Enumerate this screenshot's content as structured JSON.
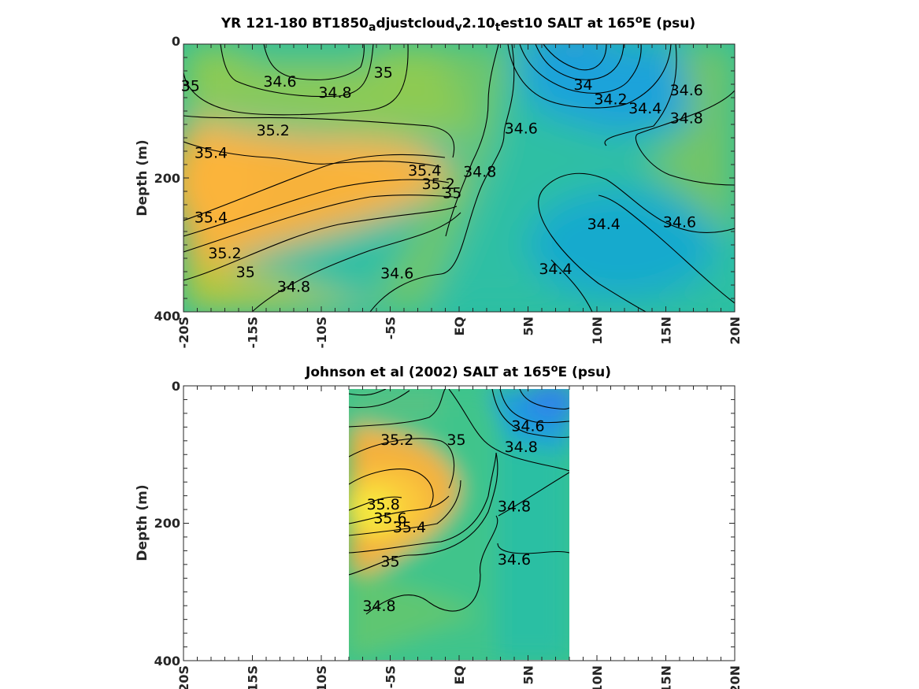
{
  "chart_data": [
    {
      "type": "contour",
      "title_main": "YR 121-180 BT1850",
      "title_parts": [
        {
          "t": "YR 121-180 BT1850"
        },
        {
          "t": "a",
          "sub": true
        },
        {
          "t": "djustcloud"
        },
        {
          "t": "v",
          "sub": true
        },
        {
          "t": "2.10"
        },
        {
          "t": "t",
          "sub": true
        },
        {
          "t": "est10 SALT at 165"
        },
        {
          "t": "o",
          "sup": true
        },
        {
          "t": "E (psu)"
        }
      ],
      "xlabel": "",
      "ylabel": "Depth (m)",
      "x_ticks": [
        "-20S",
        "-15S",
        "-10S",
        "-5S",
        "EQ",
        "5N",
        "10N",
        "15N",
        "20N"
      ],
      "y_ticks": [
        "0",
        "200",
        "400"
      ],
      "xlim": [
        -20,
        20
      ],
      "ylim": [
        400,
        0
      ],
      "data_extent_lat": [
        -20,
        20
      ],
      "grid": false,
      "colormap": "parula",
      "contour_labels": [
        {
          "text": "34.6",
          "lat": -13,
          "depth": 55
        },
        {
          "text": "34.8",
          "lat": -9,
          "depth": 72
        },
        {
          "text": "35",
          "lat": -19.5,
          "depth": 62
        },
        {
          "text": "35",
          "lat": -5.5,
          "depth": 42
        },
        {
          "text": "35.2",
          "lat": -13.5,
          "depth": 128
        },
        {
          "text": "35.4",
          "lat": -18,
          "depth": 162
        },
        {
          "text": "35.4",
          "lat": -18,
          "depth": 258
        },
        {
          "text": "35.2",
          "lat": -17,
          "depth": 312
        },
        {
          "text": "35",
          "lat": -15.5,
          "depth": 340
        },
        {
          "text": "34.8",
          "lat": -12,
          "depth": 362
        },
        {
          "text": "34.6",
          "lat": -4.5,
          "depth": 342
        },
        {
          "text": "35.4",
          "lat": -2.5,
          "depth": 188
        },
        {
          "text": "35.2",
          "lat": -1.5,
          "depth": 208
        },
        {
          "text": "35",
          "lat": -0.5,
          "depth": 222
        },
        {
          "text": "34.8",
          "lat": 1.5,
          "depth": 190
        },
        {
          "text": "34.6",
          "lat": 4.5,
          "depth": 125
        },
        {
          "text": "34",
          "lat": 9,
          "depth": 60
        },
        {
          "text": "34.2",
          "lat": 11,
          "depth": 82
        },
        {
          "text": "34.4",
          "lat": 13.5,
          "depth": 95
        },
        {
          "text": "34.6",
          "lat": 16.5,
          "depth": 68
        },
        {
          "text": "34.8",
          "lat": 16.5,
          "depth": 110
        },
        {
          "text": "34.6",
          "lat": 16,
          "depth": 265
        },
        {
          "text": "34.4",
          "lat": 10.5,
          "depth": 268
        },
        {
          "text": "34.4",
          "lat": 7,
          "depth": 335
        }
      ]
    },
    {
      "type": "contour",
      "title_parts": [
        {
          "t": "Johnson et al (2002) SALT at 165"
        },
        {
          "t": "o",
          "sup": true
        },
        {
          "t": "E (psu)"
        }
      ],
      "xlabel": "",
      "ylabel": "Depth (m)",
      "x_ticks": [
        "20S",
        "15S",
        "10S",
        "-5S",
        "EQ",
        "5N",
        "10N",
        "15N",
        "20N"
      ],
      "y_ticks": [
        "0",
        "200",
        "400"
      ],
      "xlim": [
        -20,
        20
      ],
      "ylim": [
        400,
        0
      ],
      "data_extent_lat": [
        -8,
        8
      ],
      "grid": false,
      "colormap": "parula",
      "contour_labels": [
        {
          "text": "35.2",
          "lat": -4.5,
          "depth": 78
        },
        {
          "text": "35",
          "lat": -0.2,
          "depth": 78
        },
        {
          "text": "34.6",
          "lat": 5,
          "depth": 58
        },
        {
          "text": "34.8",
          "lat": 4.5,
          "depth": 88
        },
        {
          "text": "35.8",
          "lat": -5.5,
          "depth": 172
        },
        {
          "text": "35.6",
          "lat": -5,
          "depth": 192
        },
        {
          "text": "35.4",
          "lat": -3.6,
          "depth": 205
        },
        {
          "text": "35",
          "lat": -5,
          "depth": 255
        },
        {
          "text": "34.8",
          "lat": -5.8,
          "depth": 320
        },
        {
          "text": "34.8",
          "lat": 4,
          "depth": 175
        },
        {
          "text": "34.6",
          "lat": 4,
          "depth": 252
        }
      ]
    }
  ]
}
